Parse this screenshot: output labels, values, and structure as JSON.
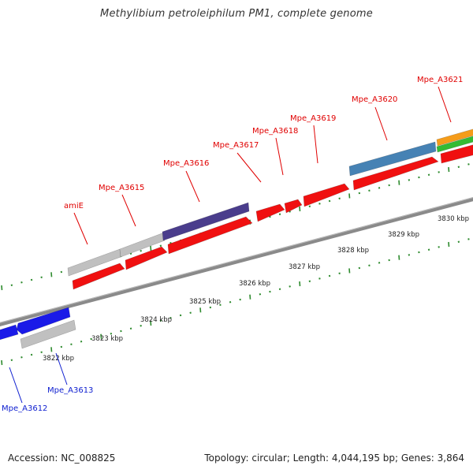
{
  "title": "Methylibium petroleiphilum PM1, complete genome",
  "footer": {
    "accession": "Accession: NC_008825",
    "topology": "Topology: circular; Length: 4,044,195 bp; Genes: 3,864"
  },
  "colors": {
    "backbone": "#8a8a8a",
    "tick": "#2e8b2e",
    "label_forward": "#e00000",
    "label_reverse": "#1020d0",
    "gene_red": "#f01010",
    "gene_grey": "#c0c0c0",
    "gene_navy": "#4a3d8c",
    "gene_steel": "#4682b4",
    "gene_blue": "#1a1ae8",
    "gene_orange": "#f59c1a",
    "gene_green": "#33bb33"
  },
  "scale_labels": [
    "3822 kbp",
    "3823 kbp",
    "3824 kbp",
    "3825 kbp",
    "3826 kbp",
    "3827 kbp",
    "3828 kbp",
    "3829 kbp",
    "3830 kbp"
  ],
  "labels_forward": [
    "amiE",
    "Mpe_A3615",
    "Mpe_A3616",
    "Mpe_A3617",
    "Mpe_A3618",
    "Mpe_A3619",
    "Mpe_A3620",
    "Mpe_A3621"
  ],
  "labels_reverse": [
    "Mpe_A3613",
    "Mpe_A3612"
  ]
}
